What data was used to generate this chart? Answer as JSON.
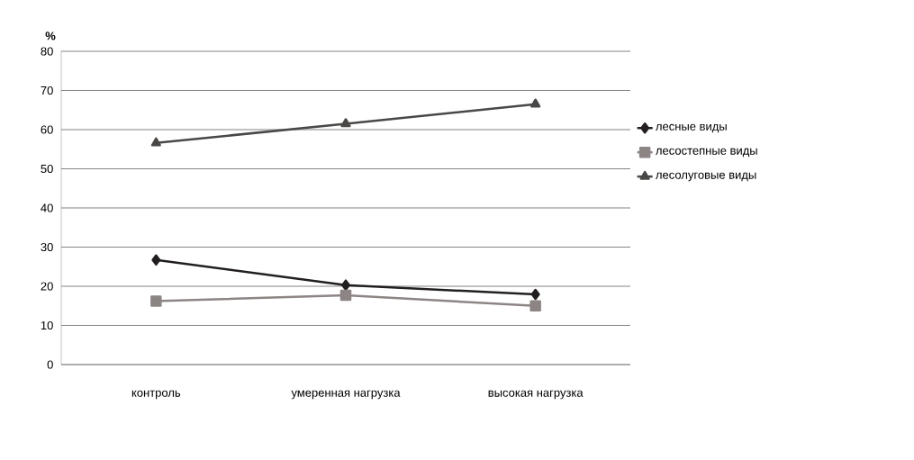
{
  "chart_data": {
    "type": "line",
    "ylabel": "%",
    "categories": [
      "контроль",
      "умеренная нагрузка",
      "высокая нагрузка"
    ],
    "series": [
      {
        "name": "лесные виды",
        "color": "#231f20",
        "marker": "diamond",
        "values": [
          26.7,
          20.3,
          17.9
        ]
      },
      {
        "name": "лесостепные виды",
        "color": "#8c8584",
        "marker": "square",
        "values": [
          16.2,
          17.7,
          15.0
        ]
      },
      {
        "name": "лесолуговые виды",
        "color": "#4a4846",
        "marker": "triangle",
        "values": [
          56.6,
          61.5,
          66.5
        ]
      }
    ],
    "ylim": [
      0,
      80
    ],
    "yticks": [
      0,
      10,
      20,
      30,
      40,
      50,
      60,
      70,
      80
    ],
    "grid": "y",
    "legend": "right",
    "line_style": "solid"
  }
}
